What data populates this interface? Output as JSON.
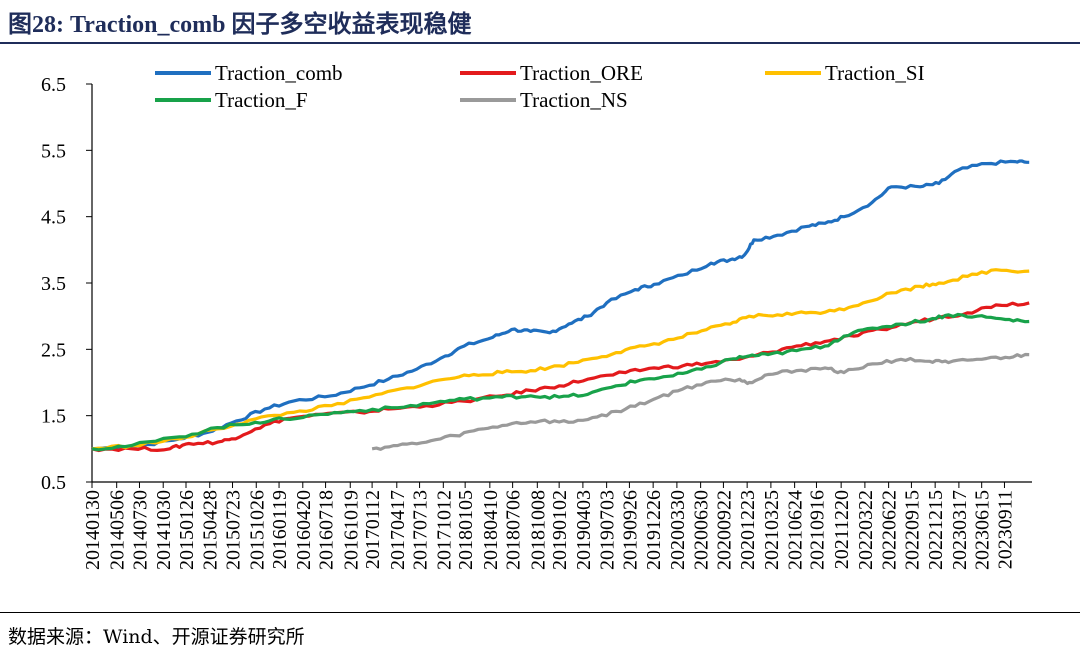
{
  "figure": {
    "title": "图28: Traction_comb 因子多空收益表现稳健",
    "source": "数据来源：Wind、开源证券研究所"
  },
  "chart_data": {
    "type": "line",
    "title": "",
    "xlabel": "",
    "ylabel": "",
    "ylim": [
      0.5,
      6.5
    ],
    "yticks": [
      0.5,
      1.5,
      2.5,
      3.5,
      4.5,
      5.5,
      6.5
    ],
    "ytick_labels": [
      "0.5",
      "1.5",
      "2.5",
      "3.5",
      "4.5",
      "5.5",
      "6.5"
    ],
    "xlim": [
      2014.08,
      2023.98
    ],
    "x_tick_labels": [
      "20140130",
      "20140506",
      "20140730",
      "20141030",
      "20150126",
      "20150428",
      "20150723",
      "20151026",
      "20160119",
      "20160420",
      "20160718",
      "20161019",
      "20170112",
      "20170417",
      "20170713",
      "20171012",
      "20180105",
      "20180410",
      "20180706",
      "20181008",
      "20190102",
      "20190403",
      "20190703",
      "20190926",
      "20191226",
      "20200330",
      "20200630",
      "20200922",
      "20201223",
      "20210325",
      "20210624",
      "20210916",
      "20211220",
      "20220322",
      "20220622",
      "20220915",
      "20221215",
      "20230317",
      "20230615",
      "20230911"
    ],
    "x_tick_values": [
      2014.08,
      2014.34,
      2014.58,
      2014.83,
      2015.07,
      2015.32,
      2015.56,
      2015.81,
      2016.05,
      2016.3,
      2016.54,
      2016.8,
      2017.03,
      2017.29,
      2017.53,
      2017.78,
      2018.01,
      2018.27,
      2018.51,
      2018.77,
      2019.0,
      2019.25,
      2019.5,
      2019.74,
      2019.99,
      2020.24,
      2020.49,
      2020.73,
      2020.98,
      2021.23,
      2021.48,
      2021.71,
      2021.97,
      2022.22,
      2022.47,
      2022.71,
      2022.96,
      2023.21,
      2023.45,
      2023.69
    ],
    "legend_position": "top",
    "grid": false,
    "series": [
      {
        "name": "Traction_comb",
        "color": "#1f6fc0",
        "x": [
          2014.08,
          2014.6,
          2015.0,
          2015.3,
          2015.6,
          2015.9,
          2016.2,
          2016.6,
          2016.9,
          2017.2,
          2017.5,
          2017.8,
          2018.0,
          2018.3,
          2018.5,
          2018.7,
          2018.9,
          2019.1,
          2019.3,
          2019.5,
          2019.8,
          2020.0,
          2020.3,
          2020.6,
          2020.8,
          2020.95,
          2021.05,
          2021.3,
          2021.6,
          2021.8,
          2022.0,
          2022.3,
          2022.5,
          2022.8,
          2023.0,
          2023.2,
          2023.5,
          2023.8,
          2023.95
        ],
        "y": [
          1.0,
          1.05,
          1.15,
          1.25,
          1.42,
          1.6,
          1.72,
          1.8,
          1.92,
          2.05,
          2.2,
          2.4,
          2.55,
          2.68,
          2.8,
          2.77,
          2.75,
          2.88,
          3.0,
          3.2,
          3.4,
          3.48,
          3.62,
          3.8,
          3.85,
          3.92,
          4.15,
          4.22,
          4.35,
          4.4,
          4.5,
          4.72,
          4.95,
          4.95,
          5.0,
          5.2,
          5.3,
          5.33,
          5.32
        ]
      },
      {
        "name": "Traction_ORE",
        "color": "#e31a1c",
        "x": [
          2014.08,
          2014.5,
          2014.9,
          2015.1,
          2015.4,
          2015.55,
          2015.8,
          2016.1,
          2016.5,
          2016.9,
          2017.2,
          2017.6,
          2018.0,
          2018.4,
          2018.7,
          2019.0,
          2019.3,
          2019.7,
          2020.0,
          2020.3,
          2020.6,
          2020.9,
          2021.2,
          2021.5,
          2021.8,
          2022.1,
          2022.4,
          2022.7,
          2023.0,
          2023.3,
          2023.6,
          2023.95
        ],
        "y": [
          1.0,
          1.0,
          1.0,
          1.08,
          1.1,
          1.15,
          1.3,
          1.45,
          1.52,
          1.55,
          1.6,
          1.65,
          1.72,
          1.8,
          1.88,
          1.95,
          2.05,
          2.15,
          2.22,
          2.25,
          2.3,
          2.35,
          2.45,
          2.55,
          2.62,
          2.7,
          2.8,
          2.9,
          2.98,
          3.05,
          3.17,
          3.2
        ]
      },
      {
        "name": "Traction_SI",
        "color": "#ffc000",
        "x": [
          2014.08,
          2014.5,
          2015.0,
          2015.4,
          2015.8,
          2016.2,
          2016.6,
          2017.0,
          2017.4,
          2017.8,
          2018.1,
          2018.4,
          2018.7,
          2019.0,
          2019.3,
          2019.6,
          2019.9,
          2020.2,
          2020.5,
          2020.8,
          2021.0,
          2021.3,
          2021.6,
          2021.9,
          2022.2,
          2022.5,
          2022.8,
          2023.0,
          2023.3,
          2023.6,
          2023.95
        ],
        "y": [
          1.0,
          1.05,
          1.15,
          1.3,
          1.45,
          1.55,
          1.65,
          1.78,
          1.92,
          2.05,
          2.12,
          2.15,
          2.18,
          2.25,
          2.35,
          2.45,
          2.55,
          2.65,
          2.78,
          2.88,
          3.0,
          3.02,
          3.05,
          3.08,
          3.2,
          3.35,
          3.45,
          3.5,
          3.6,
          3.7,
          3.68
        ]
      },
      {
        "name": "Traction_F",
        "color": "#18a24a",
        "x": [
          2014.08,
          2014.5,
          2015.0,
          2015.4,
          2015.8,
          2016.1,
          2016.5,
          2016.9,
          2017.3,
          2017.7,
          2018.0,
          2018.4,
          2018.7,
          2019.0,
          2019.3,
          2019.6,
          2019.9,
          2020.2,
          2020.5,
          2020.8,
          2021.0,
          2021.2,
          2021.5,
          2021.8,
          2022.0,
          2022.3,
          2022.6,
          2022.9,
          2023.1,
          2023.4,
          2023.7,
          2023.95
        ],
        "y": [
          1.0,
          1.05,
          1.18,
          1.32,
          1.4,
          1.45,
          1.52,
          1.58,
          1.62,
          1.7,
          1.75,
          1.78,
          1.8,
          1.78,
          1.82,
          1.95,
          2.05,
          2.1,
          2.2,
          2.35,
          2.4,
          2.42,
          2.48,
          2.55,
          2.7,
          2.82,
          2.88,
          2.95,
          3.02,
          3.0,
          2.95,
          2.92
        ]
      },
      {
        "name": "Traction_NS",
        "color": "#9a9a9a",
        "x": [
          2017.03,
          2017.3,
          2017.6,
          2017.9,
          2018.2,
          2018.5,
          2018.8,
          2019.1,
          2019.4,
          2019.7,
          2020.0,
          2020.3,
          2020.6,
          2020.9,
          2021.0,
          2021.2,
          2021.5,
          2021.8,
          2022.0,
          2022.3,
          2022.6,
          2022.9,
          2023.1,
          2023.4,
          2023.7,
          2023.95
        ],
        "y": [
          1.0,
          1.05,
          1.1,
          1.2,
          1.3,
          1.38,
          1.42,
          1.4,
          1.48,
          1.6,
          1.75,
          1.9,
          2.02,
          2.05,
          2.0,
          2.12,
          2.18,
          2.22,
          2.15,
          2.28,
          2.35,
          2.32,
          2.3,
          2.35,
          2.38,
          2.42
        ]
      }
    ]
  }
}
